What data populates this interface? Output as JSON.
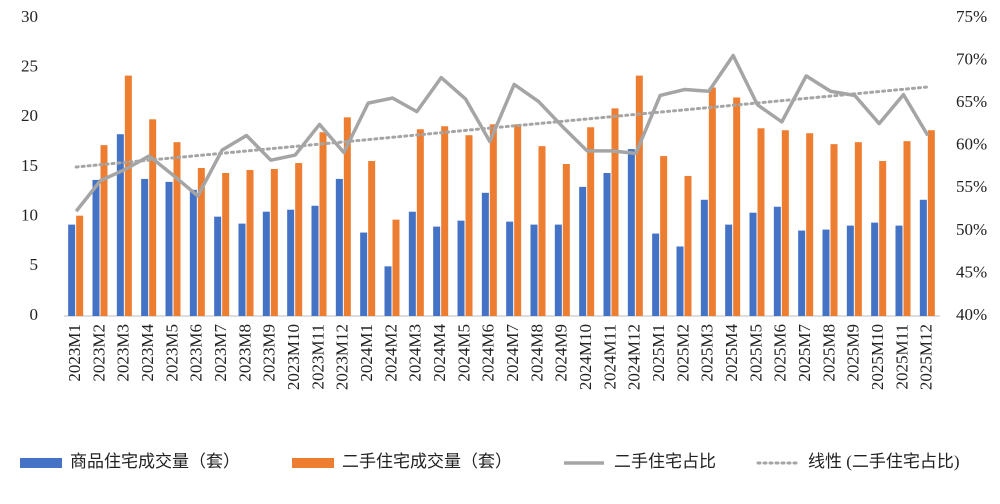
{
  "chart_data": {
    "type": "bar_line",
    "categories": [
      "2023M1",
      "2023M2",
      "2023M3",
      "2023M4",
      "2023M5",
      "2023M6",
      "2023M7",
      "2023M8",
      "2023M9",
      "2023M10",
      "2023M11",
      "2023M12",
      "2024M1",
      "2024M2",
      "2024M3",
      "2024M4",
      "2024M5",
      "2024M6",
      "2024M7",
      "2024M8",
      "2024M9",
      "2024M10",
      "2024M11",
      "2024M12",
      "2025M1",
      "2025M2",
      "2025M3",
      "2025M4",
      "2025M5",
      "2025M6",
      "2025M7",
      "2025M8",
      "2025M9",
      "2025M10",
      "2025M11",
      "2025M12"
    ],
    "series": [
      {
        "name": "商品住宅成交量（套）",
        "type": "bar",
        "color": "#4472c4",
        "values": [
          9.2,
          13.7,
          18.3,
          13.8,
          13.5,
          12.7,
          10.0,
          9.3,
          10.5,
          10.7,
          11.1,
          13.8,
          8.4,
          5.0,
          10.5,
          9.0,
          9.6,
          12.4,
          9.5,
          9.2,
          9.2,
          13.0,
          14.4,
          16.8,
          8.3,
          7.0,
          11.7,
          9.2,
          10.4,
          11.0,
          8.6,
          8.7,
          9.1,
          9.4,
          9.1,
          11.7
        ]
      },
      {
        "name": "二手住宅成交量（套）",
        "type": "bar",
        "color": "#ed7d31",
        "values": [
          10.1,
          17.2,
          24.2,
          19.8,
          17.5,
          14.9,
          14.4,
          14.7,
          14.8,
          15.4,
          18.5,
          20.0,
          15.6,
          9.7,
          18.8,
          19.1,
          18.2,
          19.3,
          19.3,
          17.1,
          15.3,
          19.0,
          20.9,
          24.2,
          16.1,
          14.1,
          23.0,
          22.0,
          18.9,
          18.7,
          18.4,
          17.3,
          17.5,
          15.6,
          17.6,
          18.7
        ]
      },
      {
        "name": "二手住宅占比",
        "type": "line",
        "axis": "y2",
        "color": "#a5a5a5",
        "line_style": "solid",
        "values": [
          52.3,
          55.9,
          57.2,
          58.8,
          56.5,
          54.1,
          59.5,
          61.2,
          58.3,
          58.9,
          62.5,
          59.2,
          65.0,
          65.6,
          64.0,
          68.0,
          65.5,
          60.5,
          67.2,
          65.2,
          62.2,
          59.4,
          59.4,
          59.1,
          65.9,
          66.6,
          66.4,
          70.6,
          64.8,
          62.8,
          68.2,
          66.4,
          65.9,
          62.6,
          66.0,
          61.2
        ]
      },
      {
        "name": "线性 (二手住宅占比)",
        "type": "line",
        "axis": "y2",
        "color": "#a5a5a5",
        "line_style": "dotted",
        "values": [
          57.5,
          57.77,
          58.04,
          58.31,
          58.57,
          58.84,
          59.11,
          59.38,
          59.65,
          59.92,
          60.19,
          60.45,
          60.72,
          60.99,
          61.26,
          61.53,
          61.8,
          62.07,
          62.33,
          62.6,
          62.87,
          63.14,
          63.41,
          63.68,
          63.95,
          64.21,
          64.48,
          64.75,
          65.02,
          65.29,
          65.56,
          65.83,
          66.09,
          66.36,
          66.63,
          66.9
        ]
      }
    ],
    "ylim": [
      0,
      30
    ],
    "yticks": [
      0,
      5,
      10,
      15,
      20,
      25,
      30
    ],
    "y2lim": [
      40,
      75
    ],
    "y2ticks": [
      {
        "value": 40,
        "label": "40%"
      },
      {
        "value": 45,
        "label": "45%"
      },
      {
        "value": 50,
        "label": "50%"
      },
      {
        "value": 55,
        "label": "55%"
      },
      {
        "value": 60,
        "label": "60%"
      },
      {
        "value": 65,
        "label": "65%"
      },
      {
        "value": 70,
        "label": "70%"
      },
      {
        "value": 75,
        "label": "75%"
      }
    ],
    "grid": false,
    "legend": "bottom"
  }
}
